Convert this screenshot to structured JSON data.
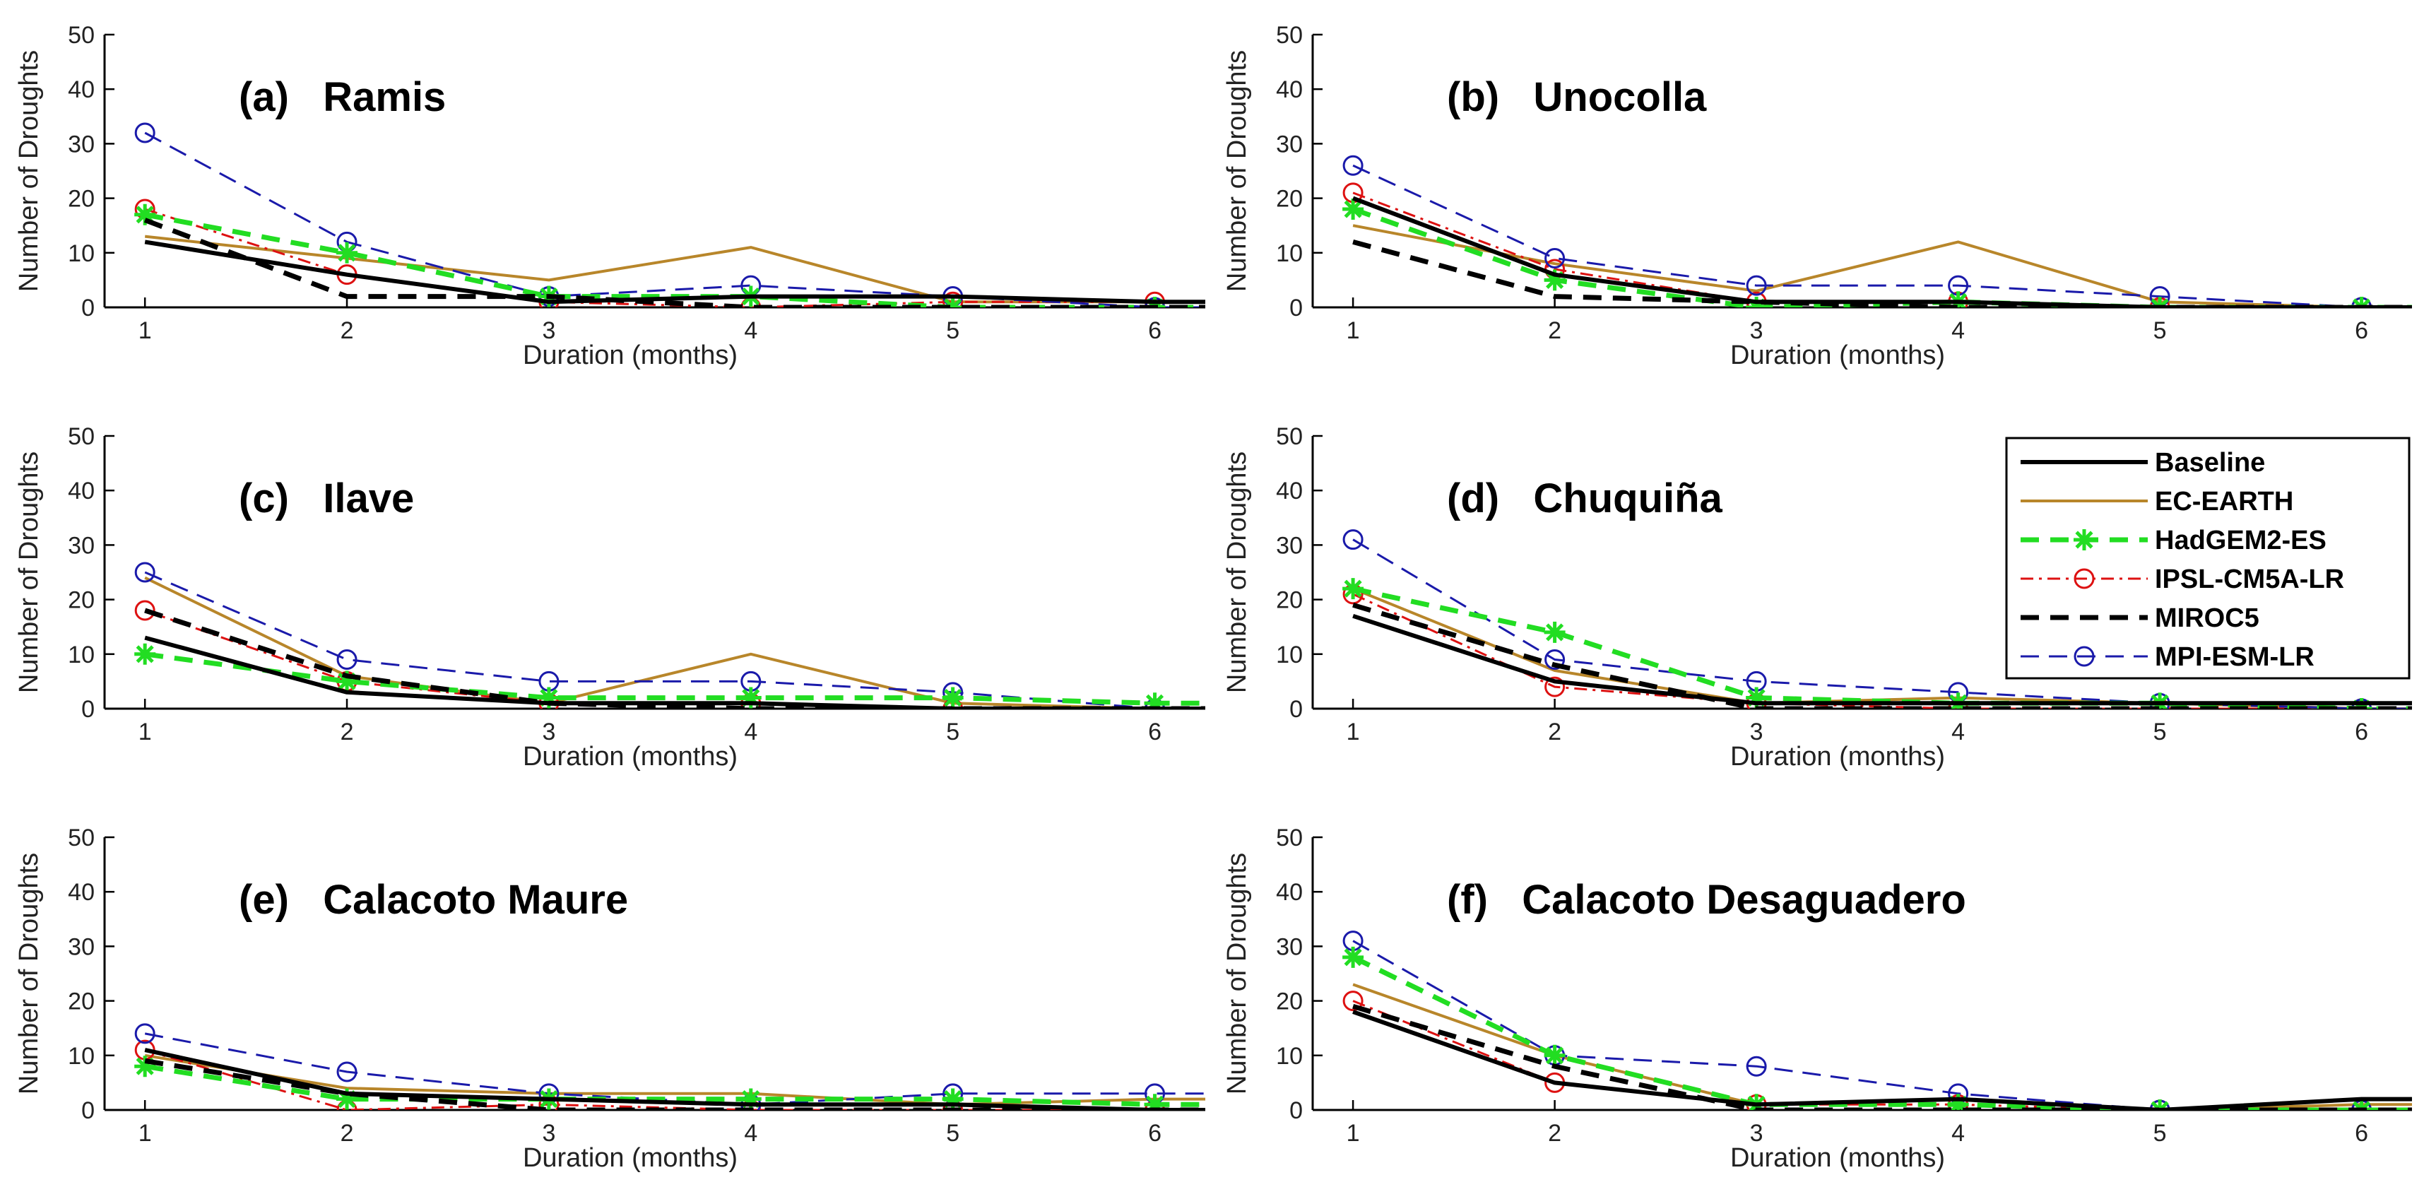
{
  "chart_data": {
    "type": "line",
    "xlabel": "Duration (months)",
    "ylabel": "Number of Droughts",
    "x": [
      1,
      2,
      3,
      4,
      5,
      6
    ],
    "xlim": [
      0.8,
      6.25
    ],
    "ylim": [
      0,
      50
    ],
    "yticks": [
      0,
      10,
      20,
      30,
      40,
      50
    ],
    "xticks": [
      1,
      2,
      3,
      4,
      5,
      6
    ],
    "legend_position": "right-middle",
    "legend": [
      {
        "key": "baseline",
        "name": "Baseline",
        "color": "#000000",
        "style": "solid-thick",
        "marker": "none"
      },
      {
        "key": "ecearth",
        "name": "EC-EARTH",
        "color": "#b8862a",
        "style": "solid",
        "marker": "none"
      },
      {
        "key": "hadgem",
        "name": "HadGEM2-ES",
        "color": "#22dd22",
        "style": "dashed-thick",
        "marker": "asterisk"
      },
      {
        "key": "ipsl",
        "name": "IPSL-CM5A-LR",
        "color": "#dd1111",
        "style": "dash-dot",
        "marker": "circle"
      },
      {
        "key": "miroc",
        "name": "MIROC5",
        "color": "#000000",
        "style": "dashed-thick",
        "marker": "none"
      },
      {
        "key": "mpi",
        "name": "MPI-ESM-LR",
        "color": "#1a1aaa",
        "style": "dashed",
        "marker": "circle"
      }
    ],
    "panels": [
      {
        "title": "(a)   Ramis",
        "series": {
          "baseline": [
            12,
            6,
            1,
            2,
            2,
            1
          ],
          "ecearth": [
            13,
            9,
            5,
            11,
            1,
            1
          ],
          "hadgem": [
            17,
            10,
            2,
            2,
            0,
            0
          ],
          "ipsl": [
            18,
            6,
            1,
            0,
            1,
            1
          ],
          "miroc": [
            16,
            2,
            2,
            0,
            0,
            0
          ],
          "mpi": [
            32,
            12,
            2,
            4,
            2,
            0
          ]
        }
      },
      {
        "title": "(b)   Unocolla",
        "series": {
          "baseline": [
            20,
            6,
            1,
            1,
            0,
            0
          ],
          "ecearth": [
            15,
            8,
            3,
            12,
            1,
            0
          ],
          "hadgem": [
            18,
            5,
            0,
            1,
            0,
            0
          ],
          "ipsl": [
            21,
            7,
            1,
            1,
            0,
            0
          ],
          "miroc": [
            12,
            2,
            1,
            0,
            0,
            0
          ],
          "mpi": [
            26,
            9,
            4,
            4,
            2,
            0
          ]
        }
      },
      {
        "title": "(c)   Ilave",
        "series": {
          "baseline": [
            13,
            3,
            1,
            1,
            0,
            0
          ],
          "ecearth": [
            24,
            6,
            1,
            10,
            1,
            0
          ],
          "hadgem": [
            10,
            5,
            2,
            2,
            2,
            1
          ],
          "ipsl": [
            18,
            5,
            1,
            1,
            0,
            0
          ],
          "miroc": [
            18,
            6,
            1,
            0,
            0,
            0
          ],
          "mpi": [
            25,
            9,
            5,
            5,
            3,
            0
          ]
        }
      },
      {
        "title": "(d)   Chuquiña",
        "series": {
          "baseline": [
            17,
            5,
            1,
            1,
            1,
            1
          ],
          "ecearth": [
            22,
            7,
            1,
            2,
            1,
            0
          ],
          "hadgem": [
            22,
            14,
            2,
            1,
            1,
            0
          ],
          "ipsl": [
            21,
            4,
            1,
            0,
            0,
            0
          ],
          "miroc": [
            19,
            8,
            0,
            0,
            0,
            0
          ],
          "mpi": [
            31,
            9,
            5,
            3,
            1,
            0
          ]
        }
      },
      {
        "title": "(e)   Calacoto Maure",
        "series": {
          "baseline": [
            11,
            3,
            2,
            1,
            1,
            0
          ],
          "ecearth": [
            10,
            4,
            3,
            3,
            1,
            2
          ],
          "hadgem": [
            8,
            2,
            2,
            2,
            2,
            1
          ],
          "ipsl": [
            11,
            0,
            1,
            0,
            0,
            0
          ],
          "miroc": [
            9,
            3,
            0,
            0,
            0,
            0
          ],
          "mpi": [
            14,
            7,
            3,
            1,
            3,
            3
          ]
        }
      },
      {
        "title": "(f)   Calacoto Desaguadero",
        "series": {
          "baseline": [
            18,
            5,
            1,
            2,
            0,
            2
          ],
          "ecearth": [
            23,
            10,
            1,
            2,
            0,
            1
          ],
          "hadgem": [
            28,
            10,
            1,
            1,
            0,
            0
          ],
          "ipsl": [
            20,
            5,
            1,
            1,
            0,
            0
          ],
          "miroc": [
            19,
            8,
            0,
            0,
            0,
            0
          ],
          "mpi": [
            31,
            10,
            8,
            3,
            0,
            0
          ]
        }
      }
    ]
  }
}
